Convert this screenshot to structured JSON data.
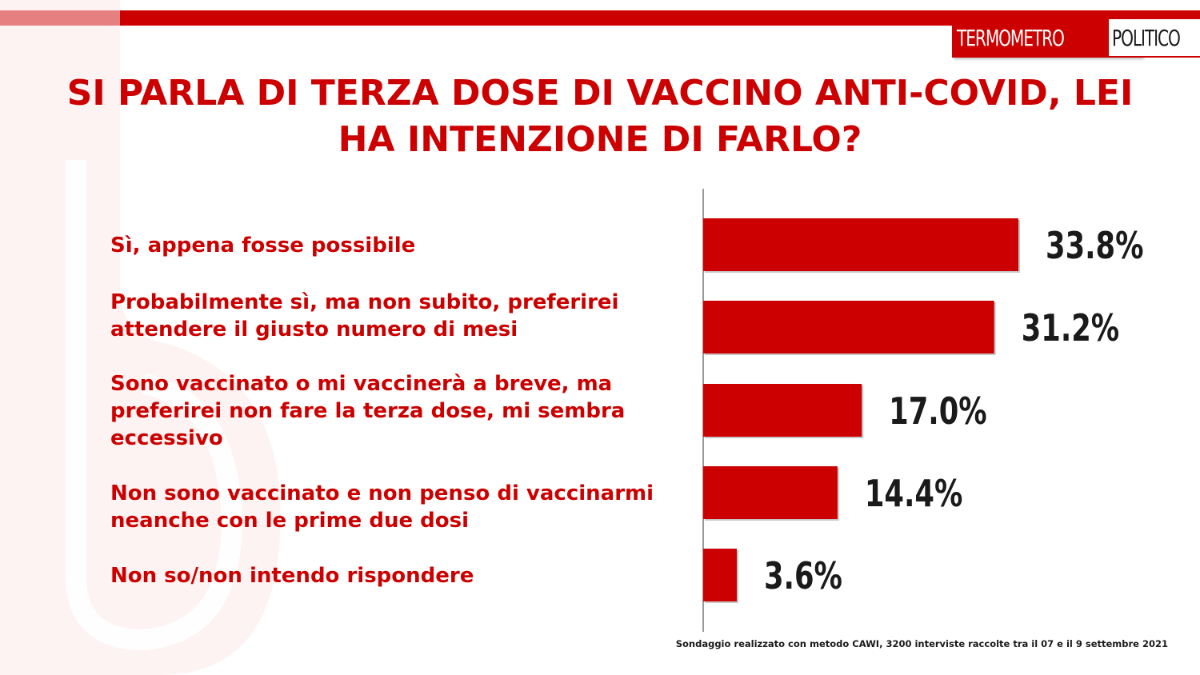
{
  "brand": {
    "logo_part_a": "TERMOMETRO",
    "logo_part_b": "POLITICO",
    "accent_color": "#cc0000"
  },
  "header": {
    "title": "SI PARLA DI TERZA DOSE DI VACCINO ANTI-COVID, LEI\nHA INTENZIONE DI FARLO?"
  },
  "chart_data": {
    "type": "bar",
    "orientation": "horizontal",
    "categories": [
      "Sì, appena fosse possibile",
      "Probabilmente sì, ma non subito, preferirei\nattendere il giusto numero di mesi",
      "Sono vaccinato o mi vaccinerà a breve, ma\npreferirei non fare la terza dose, mi sembra\neccessivo",
      "Non sono vaccinato e non penso di vaccinarmi\nneanche con le prime due dosi",
      "Non so/non intendo rispondere"
    ],
    "values": [
      33.8,
      31.2,
      17.0,
      14.4,
      3.6
    ],
    "value_labels": [
      "33.8%",
      "31.2%",
      "17.0%",
      "14.4%",
      "3.6%"
    ],
    "bar_color": "#cc0000",
    "xlim": [
      0,
      33.8
    ],
    "grid": false,
    "legend": "none"
  },
  "footer": {
    "note": "Sondaggio realizzato con metodo CAWI, 3200 interviste raccolte tra il 07 e il 9 settembre 2021"
  }
}
